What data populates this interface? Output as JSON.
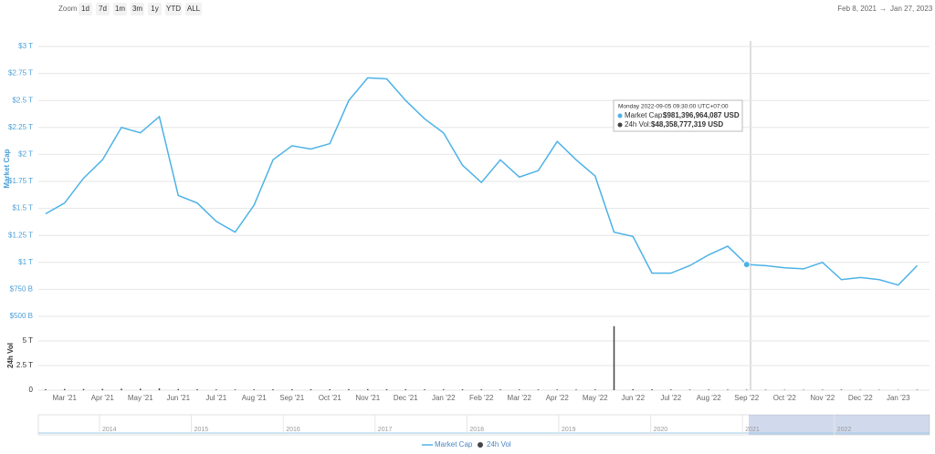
{
  "zoom": {
    "label": "Zoom",
    "buttons": [
      "1d",
      "7d",
      "1m",
      "3m",
      "1y",
      "YTD",
      "ALL"
    ]
  },
  "range": {
    "from": "Feb 8, 2021",
    "arrow": "→",
    "to": "Jan 27, 2023"
  },
  "chart_data": {
    "type": "line",
    "categories": [
      null,
      "Mar '21",
      null,
      "Apr '21",
      null,
      "May '21",
      null,
      "Jun '21",
      null,
      "Jul '21",
      null,
      "Aug '21",
      null,
      "Sep '21",
      null,
      "Oct '21",
      null,
      "Nov '21",
      null,
      "Dec '21",
      null,
      "Jan '22",
      null,
      "Feb '22",
      null,
      "Mar '22",
      null,
      "Apr '22",
      null,
      "May '22",
      null,
      "Jun '22",
      null,
      "Jul '22",
      null,
      "Aug '22",
      null,
      "Sep '22",
      null,
      "Oct '22",
      null,
      "Nov '22",
      null,
      "Dec '22",
      null,
      "Jan '23",
      null
    ],
    "y_label": "Market Cap",
    "y2_label": "24h Vol",
    "ylim": [
      0.5,
      3
    ],
    "yticks": [
      {
        "value": 0.5,
        "label": "$500 B"
      },
      {
        "value": 0.75,
        "label": "$750 B"
      },
      {
        "value": 1,
        "label": "$1 T"
      },
      {
        "value": 1.25,
        "label": "$1.25 T"
      },
      {
        "value": 1.5,
        "label": "$1.5 T"
      },
      {
        "value": 1.75,
        "label": "$1.75 T"
      },
      {
        "value": 2,
        "label": "$2 T"
      },
      {
        "value": 2.25,
        "label": "$2.25 T"
      },
      {
        "value": 2.5,
        "label": "$2.5 T"
      },
      {
        "value": 2.75,
        "label": "$2.75 T"
      },
      {
        "value": 3,
        "label": "$3 T"
      }
    ],
    "y2lim": [
      0,
      7
    ],
    "y2ticks": [
      0,
      {
        "value": 2.5,
        "label": "2.5 T"
      },
      {
        "value": 5,
        "label": "5 T"
      }
    ],
    "grid": true,
    "series": [
      {
        "name": "Market Cap",
        "color": "#4db2e6",
        "values": [
          1.45,
          1.55,
          1.78,
          1.95,
          2.25,
          2.2,
          2.35,
          1.62,
          1.55,
          1.38,
          1.28,
          1.53,
          1.95,
          2.08,
          2.05,
          2.1,
          2.5,
          2.71,
          2.7,
          2.5,
          2.33,
          2.2,
          1.9,
          1.74,
          1.95,
          1.79,
          1.85,
          2.12,
          1.95,
          1.8,
          1.28,
          1.24,
          0.9,
          0.9,
          0.97,
          1.07,
          1.15,
          0.98,
          0.97,
          0.95,
          0.94,
          1.0,
          0.84,
          0.86,
          0.84,
          0.79,
          0.97
        ]
      },
      {
        "name": "24h Vol",
        "color": "#434348",
        "type": "bar",
        "axis": "y2",
        "values": [
          0.1,
          0.12,
          0.12,
          0.13,
          0.15,
          0.15,
          0.18,
          0.12,
          0.1,
          0.08,
          0.07,
          0.08,
          0.09,
          0.1,
          0.1,
          0.1,
          0.11,
          0.11,
          0.1,
          0.09,
          0.08,
          0.08,
          0.09,
          0.08,
          0.08,
          0.07,
          0.07,
          0.07,
          0.07,
          0.08,
          6.5,
          0.1,
          0.09,
          0.07,
          0.06,
          0.06,
          0.06,
          0.05,
          0.05,
          0.04,
          0.04,
          0.05,
          0.06,
          0.04,
          0.04,
          0.03,
          0.05
        ]
      }
    ]
  },
  "tooltip": {
    "date": "Monday 2022-09-05 09:30:00 UTC+07:00",
    "cap_label": "Market Cap:",
    "cap_value": "$981,396,964,087 USD",
    "vol_label": "24h Vol:",
    "vol_value": "$48,358,777,319 USD"
  },
  "navigator": {
    "years": [
      "2014",
      "2015",
      "2016",
      "2017",
      "2018",
      "2019",
      "2020",
      "2021",
      "2022"
    ]
  }
}
